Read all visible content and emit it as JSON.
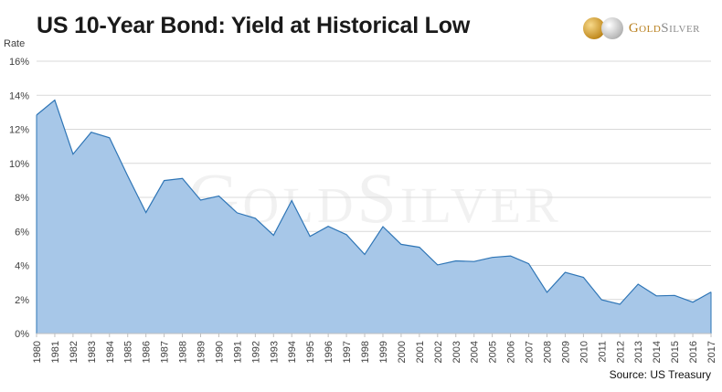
{
  "header": {
    "title": "US 10-Year Bond: Yield at Historical Low",
    "brand_gold": "Gold",
    "brand_silver": "Silver"
  },
  "watermark": "GoldSilver",
  "source": "Source: US Treasury",
  "chart_data": {
    "type": "area",
    "title": "US 10-Year Bond: Yield at Historical Low",
    "xlabel": "",
    "ylabel": "Rate",
    "x": [
      "1980",
      "1981",
      "1982",
      "1983",
      "1984",
      "1985",
      "1986",
      "1987",
      "1988",
      "1989",
      "1990",
      "1991",
      "1992",
      "1993",
      "1994",
      "1995",
      "1996",
      "1997",
      "1998",
      "1999",
      "2000",
      "2001",
      "2002",
      "2003",
      "2004",
      "2005",
      "2006",
      "2007",
      "2008",
      "2009",
      "2010",
      "2011",
      "2012",
      "2013",
      "2014",
      "2015",
      "2016",
      "2017"
    ],
    "series": [
      {
        "name": "",
        "values": [
          12.84,
          13.72,
          10.54,
          11.83,
          11.5,
          9.26,
          7.11,
          8.99,
          9.11,
          7.84,
          8.08,
          7.09,
          6.77,
          5.77,
          7.81,
          5.71,
          6.3,
          5.81,
          4.65,
          6.28,
          5.24,
          5.07,
          4.03,
          4.27,
          4.23,
          4.47,
          4.56,
          4.1,
          2.42,
          3.59,
          3.3,
          1.98,
          1.72,
          2.9,
          2.21,
          2.24,
          1.84,
          2.44
        ]
      }
    ],
    "ylim": [
      0,
      16
    ],
    "yticks": [
      0,
      2,
      4,
      6,
      8,
      10,
      12,
      14,
      16
    ],
    "ytick_labels": [
      "0%",
      "2%",
      "4%",
      "6%",
      "8%",
      "10%",
      "12%",
      "14%",
      "16%"
    ],
    "grid": true,
    "legend": "none",
    "colors": {
      "fill": "#a7c7e8",
      "line": "#2e75b6",
      "grid": "#d9d9d9"
    }
  }
}
